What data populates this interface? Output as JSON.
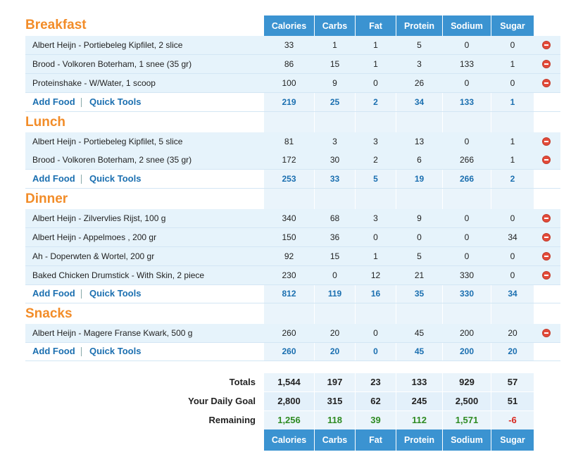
{
  "columns": [
    "Calories",
    "Carbs",
    "Fat",
    "Protein",
    "Sodium",
    "Sugar"
  ],
  "links": {
    "add_food": "Add Food",
    "quick_tools": "Quick Tools"
  },
  "meals": [
    {
      "title": "Breakfast",
      "items": [
        {
          "name": "Albert Heijn - Portiebeleg Kipfilet, 2 slice",
          "values": [
            "33",
            "1",
            "1",
            "5",
            "0",
            "0"
          ]
        },
        {
          "name": "Brood - Volkoren Boterham, 1 snee (35 gr)",
          "values": [
            "86",
            "15",
            "1",
            "3",
            "133",
            "1"
          ]
        },
        {
          "name": "Proteinshake - W/Water, 1 scoop",
          "values": [
            "100",
            "9",
            "0",
            "26",
            "0",
            "0"
          ]
        }
      ],
      "totals": [
        "219",
        "25",
        "2",
        "34",
        "133",
        "1"
      ]
    },
    {
      "title": "Lunch",
      "items": [
        {
          "name": "Albert Heijn - Portiebeleg Kipfilet, 5 slice",
          "values": [
            "81",
            "3",
            "3",
            "13",
            "0",
            "1"
          ]
        },
        {
          "name": "Brood - Volkoren Boterham, 2 snee (35 gr)",
          "values": [
            "172",
            "30",
            "2",
            "6",
            "266",
            "1"
          ]
        }
      ],
      "totals": [
        "253",
        "33",
        "5",
        "19",
        "266",
        "2"
      ]
    },
    {
      "title": "Dinner",
      "items": [
        {
          "name": "Albert Heijn - Zilvervlies Rijst, 100 g",
          "values": [
            "340",
            "68",
            "3",
            "9",
            "0",
            "0"
          ]
        },
        {
          "name": "Albert Heijn - Appelmoes , 200 gr",
          "values": [
            "150",
            "36",
            "0",
            "0",
            "0",
            "34"
          ]
        },
        {
          "name": "Ah - Doperwten & Wortel, 200 gr",
          "values": [
            "92",
            "15",
            "1",
            "5",
            "0",
            "0"
          ]
        },
        {
          "name": "Baked Chicken Drumstick - With Skin, 2 piece",
          "values": [
            "230",
            "0",
            "12",
            "21",
            "330",
            "0"
          ]
        }
      ],
      "totals": [
        "812",
        "119",
        "16",
        "35",
        "330",
        "34"
      ]
    },
    {
      "title": "Snacks",
      "items": [
        {
          "name": "Albert Heijn - Magere Franse Kwark, 500 g",
          "values": [
            "260",
            "20",
            "0",
            "45",
            "200",
            "20"
          ]
        }
      ],
      "totals": [
        "260",
        "20",
        "0",
        "45",
        "200",
        "20"
      ]
    }
  ],
  "summary": {
    "totals": {
      "label": "Totals",
      "values": [
        "1,544",
        "197",
        "23",
        "133",
        "929",
        "57"
      ]
    },
    "goal": {
      "label": "Your Daily Goal",
      "values": [
        "2,800",
        "315",
        "62",
        "245",
        "2,500",
        "51"
      ]
    },
    "remaining": {
      "label": "Remaining",
      "values": [
        "1,256",
        "118",
        "39",
        "112",
        "1,571",
        "-6"
      ]
    }
  },
  "colors": {
    "accent": "#f28c28",
    "header": "#3b93d1",
    "link": "#1b6fb0",
    "positive": "#2e8b22",
    "negative": "#d8261d"
  }
}
